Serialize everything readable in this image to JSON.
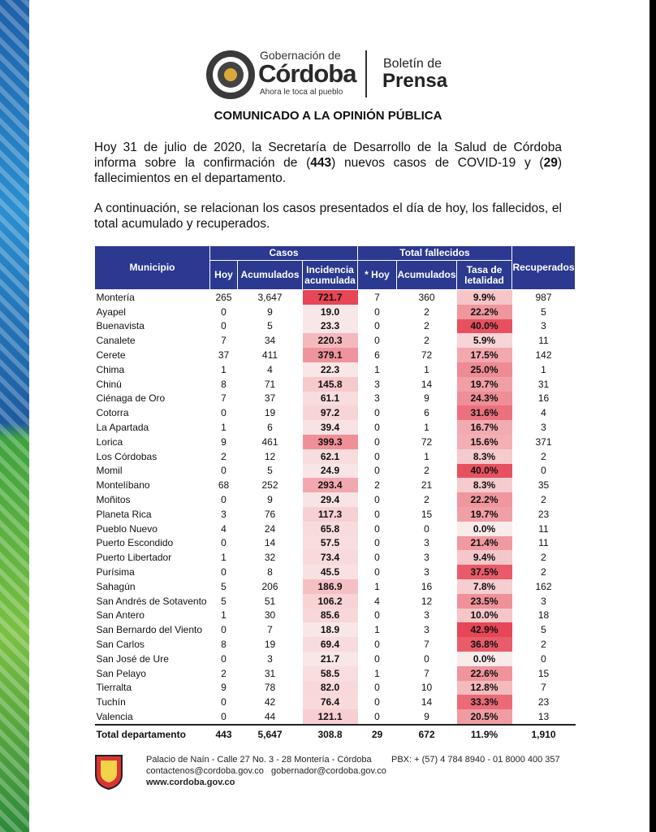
{
  "header": {
    "org_line1": "Gobernación de",
    "org_line2": "Córdoba",
    "slogan": "Ahora le toca al pueblo",
    "bulletin_line1": "Boletín de",
    "bulletin_line2": "Prensa"
  },
  "title": "COMUNICADO A LA OPINIÓN PÚBLICA",
  "intro": {
    "text_1": "Hoy 31 de julio de 2020, la Secretaría de Desarrollo de la Salud de Córdoba informa sobre la confirmación de (",
    "cases": "443",
    "text_2": ") nuevos casos de COVID-19 y (",
    "deaths": "29",
    "text_3": ") fallecimientos en el departamento."
  },
  "paragraph_2": "A continuación, se relacionan los casos presentados el día de hoy, los fallecidos, el total acumulado y recuperados.",
  "table": {
    "group_headers": {
      "municipio": "Municipio",
      "casos": "Casos",
      "fallecidos": "Total fallecidos",
      "recuperados": "Recuperados"
    },
    "sub_headers": [
      "Hoy",
      "Acumulados",
      "Incidencia acumulada",
      "* Hoy",
      "Acumulados",
      "Tasa de letalidad"
    ],
    "rows": [
      [
        "Montería",
        "265",
        "3,647",
        "721.7",
        "7",
        "360",
        "9.9%",
        "987"
      ],
      [
        "Ayapel",
        "0",
        "9",
        "19.0",
        "0",
        "2",
        "22.2%",
        "5"
      ],
      [
        "Buenavista",
        "0",
        "5",
        "23.3",
        "0",
        "2",
        "40.0%",
        "3"
      ],
      [
        "Canalete",
        "7",
        "34",
        "220.3",
        "0",
        "2",
        "5.9%",
        "11"
      ],
      [
        "Cerete",
        "37",
        "411",
        "379.1",
        "6",
        "72",
        "17.5%",
        "142"
      ],
      [
        "Chima",
        "1",
        "4",
        "22.3",
        "1",
        "1",
        "25.0%",
        "1"
      ],
      [
        "Chinú",
        "8",
        "71",
        "145.8",
        "3",
        "14",
        "19.7%",
        "31"
      ],
      [
        "Ciénaga de Oro",
        "7",
        "37",
        "61.1",
        "3",
        "9",
        "24.3%",
        "16"
      ],
      [
        "Cotorra",
        "0",
        "19",
        "97.2",
        "0",
        "6",
        "31.6%",
        "4"
      ],
      [
        "La Apartada",
        "1",
        "6",
        "39.4",
        "0",
        "1",
        "16.7%",
        "3"
      ],
      [
        "Lorica",
        "9",
        "461",
        "399.3",
        "0",
        "72",
        "15.6%",
        "371"
      ],
      [
        "Los Córdobas",
        "2",
        "12",
        "62.1",
        "0",
        "1",
        "8.3%",
        "2"
      ],
      [
        "Momil",
        "0",
        "5",
        "24.9",
        "0",
        "2",
        "40.0%",
        "0"
      ],
      [
        "Montelíbano",
        "68",
        "252",
        "293.4",
        "2",
        "21",
        "8.3%",
        "35"
      ],
      [
        "Moñitos",
        "0",
        "9",
        "29.4",
        "0",
        "2",
        "22.2%",
        "2"
      ],
      [
        "Planeta Rica",
        "3",
        "76",
        "117.3",
        "0",
        "15",
        "19.7%",
        "23"
      ],
      [
        "Pueblo Nuevo",
        "4",
        "24",
        "65.8",
        "0",
        "0",
        "0.0%",
        "11"
      ],
      [
        "Puerto Escondido",
        "0",
        "14",
        "57.5",
        "0",
        "3",
        "21.4%",
        "11"
      ],
      [
        "Puerto Libertador",
        "1",
        "32",
        "73.4",
        "0",
        "3",
        "9.4%",
        "2"
      ],
      [
        "Purísima",
        "0",
        "8",
        "45.5",
        "0",
        "3",
        "37.5%",
        "2"
      ],
      [
        "Sahagún",
        "5",
        "206",
        "186.9",
        "1",
        "16",
        "7.8%",
        "162"
      ],
      [
        "San Andrés de Sotavento",
        "5",
        "51",
        "106.2",
        "4",
        "12",
        "23.5%",
        "3"
      ],
      [
        "San Antero",
        "1",
        "30",
        "85.6",
        "0",
        "3",
        "10.0%",
        "18"
      ],
      [
        "San Bernardo del Viento",
        "0",
        "7",
        "18.9",
        "1",
        "3",
        "42.9%",
        "5"
      ],
      [
        "San Carlos",
        "8",
        "19",
        "69.4",
        "0",
        "7",
        "36.8%",
        "2"
      ],
      [
        "San José de Ure",
        "0",
        "3",
        "21.7",
        "0",
        "0",
        "0.0%",
        "0"
      ],
      [
        "San Pelayo",
        "2",
        "31",
        "58.5",
        "1",
        "7",
        "22.6%",
        "15"
      ],
      [
        "Tierralta",
        "9",
        "78",
        "82.0",
        "0",
        "10",
        "12.8%",
        "7"
      ],
      [
        "Tuchín",
        "0",
        "42",
        "76.4",
        "0",
        "14",
        "33.3%",
        "23"
      ],
      [
        "Valencia",
        "0",
        "44",
        "121.1",
        "0",
        "9",
        "20.5%",
        "13"
      ]
    ],
    "total": [
      "Total departamento",
      "443",
      "5,647",
      "308.8",
      "29",
      "672",
      "11.9%",
      "1,910"
    ]
  },
  "footer": {
    "address": "Palacio de Naín - Calle 27 No. 3 - 28 Montería - Córdoba",
    "phone": "PBX: + (57) 4 784 8940 - 01 8000 400 357",
    "emails": "contactenos@cordoba.gov.co   gobernador@cordoba.gov.co",
    "website": "www.cordoba.gov.co"
  }
}
